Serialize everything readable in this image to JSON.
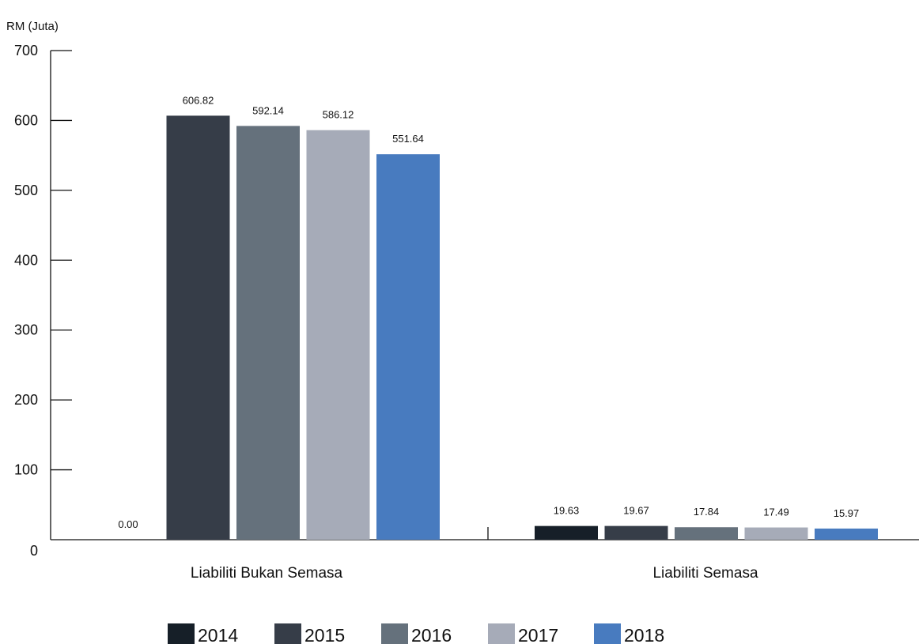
{
  "chart_data": {
    "type": "bar",
    "title": "",
    "ylabel": "RM (Juta)",
    "xlabel": "",
    "ylim": [
      0,
      700
    ],
    "yticks": [
      0,
      100,
      200,
      300,
      400,
      500,
      600,
      700
    ],
    "categories": [
      "Liabiliti Bukan Semasa",
      "Liabiliti Semasa"
    ],
    "series": [
      {
        "name": "2014",
        "color": "#161f28",
        "values": [
          0.0,
          19.63
        ],
        "labels": [
          "0.00",
          "19.63"
        ]
      },
      {
        "name": "2015",
        "color": "#363d48",
        "values": [
          606.82,
          19.67
        ],
        "labels": [
          "606.82",
          "19.67"
        ]
      },
      {
        "name": "2016",
        "color": "#65717c",
        "values": [
          592.14,
          17.84
        ],
        "labels": [
          "592.14",
          "17.84"
        ]
      },
      {
        "name": "2017",
        "color": "#a6abb8",
        "values": [
          586.12,
          17.49
        ],
        "labels": [
          "586.12",
          "17.49"
        ]
      },
      {
        "name": "2018",
        "color": "#487bbf",
        "values": [
          551.64,
          15.97
        ],
        "labels": [
          "551.64",
          "15.97"
        ]
      }
    ],
    "grid": false,
    "legend_position": "bottom"
  }
}
